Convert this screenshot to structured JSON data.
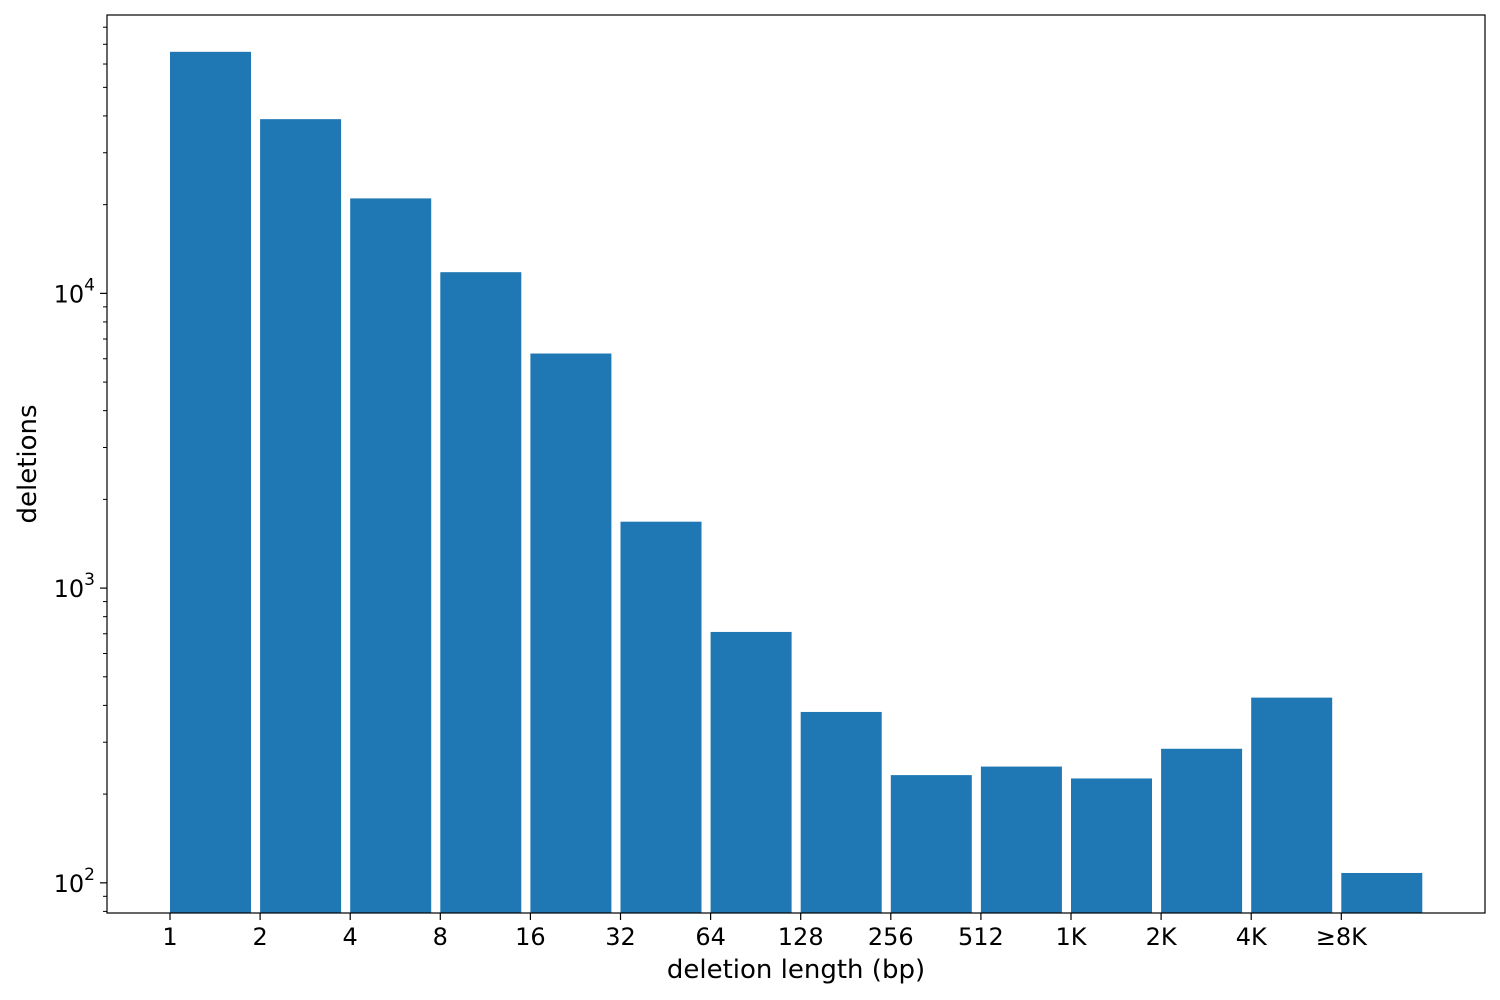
{
  "chart_data": {
    "type": "bar",
    "title": "",
    "xlabel": "deletion length (bp)",
    "ylabel": "deletions",
    "yscale": "log",
    "ylim": [
      79,
      88000
    ],
    "grid": false,
    "legend": "none",
    "bar_color": "#1f77b4",
    "x_tick_labels": [
      "1",
      "2",
      "4",
      "8",
      "16",
      "32",
      "64",
      "128",
      "256",
      "512",
      "1K",
      "2K",
      "4K",
      "≥8K"
    ],
    "y_ticks": [
      {
        "value": 100,
        "base": "10",
        "exp": "2"
      },
      {
        "value": 1000,
        "base": "10",
        "exp": "3"
      },
      {
        "value": 10000,
        "base": "10",
        "exp": "4"
      }
    ],
    "values": [
      66000,
      39000,
      21000,
      11800,
      6250,
      1680,
      710,
      380,
      232,
      248,
      226,
      285,
      425,
      108
    ]
  }
}
